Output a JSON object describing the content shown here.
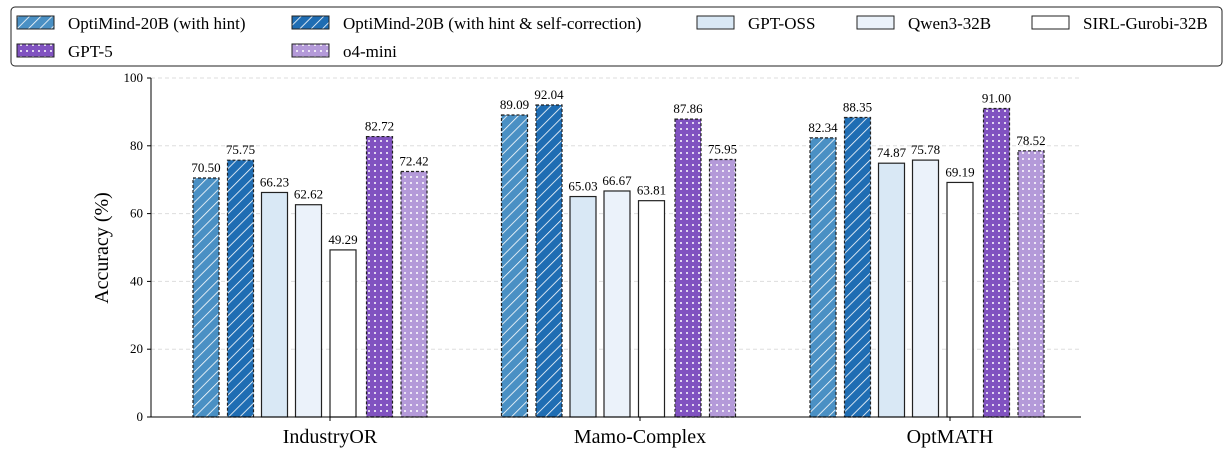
{
  "chart_data": {
    "type": "bar",
    "categories": [
      "IndustryOR",
      "Mamo-Complex",
      "OptMATH"
    ],
    "ylabel": "Accuracy (%)",
    "xlabel": "",
    "ylim": [
      0,
      100
    ],
    "yticks": [
      0,
      20,
      40,
      60,
      80,
      100
    ],
    "grid": "horizontal dashed",
    "legend_position": "top",
    "series": [
      {
        "name": "OptiMind-20B (with hint)",
        "color": "#4a90c4",
        "pattern": "hatch",
        "values": [
          70.5,
          89.09,
          82.34
        ]
      },
      {
        "name": "OptiMind-20B (with hint & self-correction)",
        "color": "#1f6db3",
        "pattern": "hatch",
        "values": [
          75.75,
          92.04,
          88.35
        ]
      },
      {
        "name": "GPT-OSS",
        "color": "#d9e8f5",
        "pattern": "none",
        "values": [
          66.23,
          65.03,
          74.87
        ]
      },
      {
        "name": "Qwen3-32B",
        "color": "#ebf2fa",
        "pattern": "none",
        "values": [
          62.62,
          66.67,
          75.78
        ]
      },
      {
        "name": "SIRL-Gurobi-32B",
        "color": "#ffffff",
        "pattern": "none",
        "values": [
          49.29,
          63.81,
          69.19
        ]
      },
      {
        "name": "GPT-5",
        "color": "#8052c0",
        "pattern": "dots",
        "values": [
          82.72,
          87.86,
          91.0
        ]
      },
      {
        "name": "o4-mini",
        "color": "#b49ad9",
        "pattern": "dots",
        "values": [
          72.42,
          75.95,
          78.52
        ]
      }
    ],
    "legend_order": [
      0,
      1,
      2,
      3,
      4,
      5,
      6
    ]
  }
}
